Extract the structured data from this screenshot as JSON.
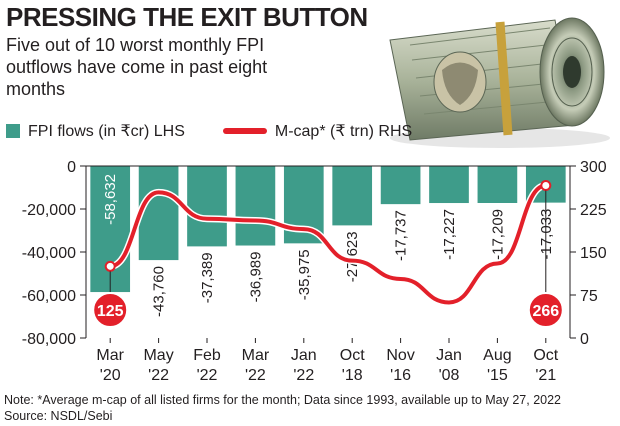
{
  "header": {
    "title": "PRESSING THE EXIT BUTTON",
    "subtitle": "Five out of 10 worst monthly FPI outflows have come in past eight months"
  },
  "legend": {
    "bars": "FPI flows (in ₹cr) LHS",
    "line": "M-cap* (₹ trn) RHS"
  },
  "footer": {
    "note": "Note: *Average m-cap of all listed firms for the month; Data since 1993, available up to May 27, 2022",
    "source": "Source: NSDL/Sebi"
  },
  "colors": {
    "bar": "#3e9c8a",
    "line": "#e3202a",
    "bubble": "#e3202a",
    "text": "#231f20"
  },
  "photo": {
    "icon": "rolled-currency-notes-photo"
  },
  "chart_data": {
    "type": "bar",
    "categories": [
      "Mar '20",
      "May '22",
      "Feb '22",
      "Mar '22",
      "Jan '22",
      "Oct '18",
      "Nov '16",
      "Jan '08",
      "Aug '15",
      "Oct '21"
    ],
    "category_lines": [
      [
        "Mar",
        "'20"
      ],
      [
        "May",
        "'22"
      ],
      [
        "Feb",
        "'22"
      ],
      [
        "Mar",
        "'22"
      ],
      [
        "Jan",
        "'22"
      ],
      [
        "Oct",
        "'18"
      ],
      [
        "Nov",
        "'16"
      ],
      [
        "Jan",
        "'08"
      ],
      [
        "Aug",
        "'15"
      ],
      [
        "Oct",
        "'21"
      ]
    ],
    "series": [
      {
        "name": "FPI flows (in ₹cr) LHS",
        "type": "bar",
        "axis": "left",
        "values": [
          -58632,
          -43760,
          -37389,
          -36989,
          -35975,
          -27623,
          -17737,
          -17227,
          -17209,
          -17033
        ],
        "labels": [
          "-58,632",
          "-43,760",
          "-37,389",
          "-36,989",
          "-35,975",
          "-27,623",
          "-17,737",
          "-17,227",
          "-17,209",
          "-17,033"
        ]
      },
      {
        "name": "M-cap* (₹ trn) RHS",
        "type": "line",
        "axis": "right",
        "values": [
          125,
          254,
          208,
          205,
          190,
          135,
          103,
          62,
          130,
          266
        ]
      }
    ],
    "highlighted_points": [
      {
        "category_index": 0,
        "label": "125"
      },
      {
        "category_index": 9,
        "label": "266"
      }
    ],
    "left_axis": {
      "ylim": [
        -80000,
        0
      ],
      "ticks": [
        0,
        -20000,
        -40000,
        -60000,
        -80000
      ],
      "tick_labels": [
        "0",
        "-20,000",
        "-40,000",
        "-60,000",
        "-80,000"
      ]
    },
    "right_axis": {
      "ylim": [
        0,
        300
      ],
      "ticks": [
        300,
        225,
        150,
        75,
        0
      ],
      "tick_labels": [
        "300",
        "225",
        "150",
        "75",
        "0"
      ]
    },
    "grid": false,
    "legend_position": "top-left"
  }
}
